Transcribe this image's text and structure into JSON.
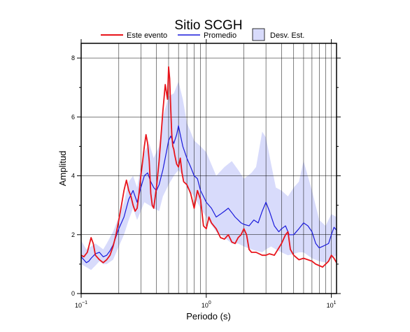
{
  "chart_data": {
    "type": "line",
    "title": "Sitio SCGH",
    "xlabel": "Periodo (s)",
    "ylabel": "Amplitud",
    "xscale": "log",
    "xlim": [
      0.1,
      11
    ],
    "ylim": [
      0,
      8.5
    ],
    "xticks": [
      {
        "value": 0.1,
        "base": "10",
        "exp": "−1"
      },
      {
        "value": 1,
        "base": "10",
        "exp": "0"
      },
      {
        "value": 10,
        "base": "10",
        "exp": "1"
      }
    ],
    "yticks": [
      0,
      2,
      4,
      6,
      8
    ],
    "grid": true,
    "legend_position": "top",
    "legend": [
      {
        "label": "Este evento",
        "type": "line",
        "color": "#e8141b"
      },
      {
        "label": "Promedio",
        "type": "line",
        "color": "#1a1adb"
      },
      {
        "label": "Desv. Est.",
        "type": "band",
        "color": "#d8dbfb"
      }
    ],
    "series": [
      {
        "name": "Este evento",
        "color": "#e8141b",
        "x": [
          0.1,
          0.105,
          0.112,
          0.12,
          0.125,
          0.13,
          0.14,
          0.15,
          0.16,
          0.17,
          0.18,
          0.19,
          0.2,
          0.21,
          0.22,
          0.23,
          0.24,
          0.25,
          0.26,
          0.27,
          0.28,
          0.29,
          0.3,
          0.31,
          0.32,
          0.33,
          0.34,
          0.35,
          0.36,
          0.37,
          0.38,
          0.4,
          0.42,
          0.45,
          0.47,
          0.49,
          0.5,
          0.51,
          0.52,
          0.53,
          0.54,
          0.55,
          0.56,
          0.58,
          0.6,
          0.62,
          0.64,
          0.66,
          0.7,
          0.75,
          0.8,
          0.85,
          0.9,
          0.95,
          1.0,
          1.05,
          1.1,
          1.2,
          1.3,
          1.4,
          1.5,
          1.6,
          1.7,
          1.8,
          1.9,
          2.0,
          2.1,
          2.2,
          2.3,
          2.5,
          2.8,
          3.0,
          3.2,
          3.5,
          4.0,
          4.3,
          4.5,
          4.7,
          5.0,
          5.5,
          6.0,
          6.5,
          7.0,
          7.5,
          8.0,
          8.5,
          9.0,
          9.5,
          10.0,
          10.5,
          11.0
        ],
        "values": [
          1.3,
          1.25,
          1.4,
          1.9,
          1.7,
          1.3,
          1.15,
          1.05,
          1.15,
          1.3,
          1.6,
          2.0,
          2.5,
          3.0,
          3.5,
          3.85,
          3.5,
          3.3,
          3.0,
          2.8,
          2.9,
          3.4,
          4.0,
          4.5,
          5.0,
          5.4,
          5.1,
          4.5,
          3.4,
          3.0,
          2.9,
          3.6,
          4.5,
          6.2,
          7.1,
          6.6,
          7.7,
          7.3,
          6.3,
          5.4,
          5.0,
          4.9,
          4.7,
          4.4,
          4.3,
          4.6,
          4.1,
          3.8,
          3.7,
          3.4,
          2.9,
          3.5,
          3.2,
          2.3,
          2.2,
          2.6,
          2.4,
          2.2,
          1.9,
          1.85,
          2.0,
          1.75,
          1.7,
          1.9,
          2.0,
          2.2,
          2.0,
          1.5,
          1.4,
          1.4,
          1.3,
          1.3,
          1.35,
          1.3,
          1.7,
          2.0,
          2.1,
          1.5,
          1.3,
          1.15,
          1.2,
          1.15,
          1.1,
          1.0,
          0.95,
          0.9,
          1.0,
          1.1,
          1.3,
          1.2,
          1.05
        ]
      },
      {
        "name": "Promedio",
        "color": "#1a1adb",
        "x": [
          0.1,
          0.105,
          0.11,
          0.115,
          0.12,
          0.13,
          0.14,
          0.15,
          0.16,
          0.17,
          0.18,
          0.2,
          0.22,
          0.24,
          0.26,
          0.28,
          0.3,
          0.32,
          0.34,
          0.36,
          0.38,
          0.4,
          0.42,
          0.45,
          0.48,
          0.5,
          0.52,
          0.55,
          0.58,
          0.6,
          0.62,
          0.65,
          0.7,
          0.75,
          0.8,
          0.85,
          0.9,
          0.95,
          1.0,
          1.1,
          1.2,
          1.3,
          1.4,
          1.5,
          1.6,
          1.7,
          1.8,
          1.9,
          2.0,
          2.2,
          2.4,
          2.6,
          2.8,
          3.0,
          3.2,
          3.5,
          3.8,
          4.0,
          4.3,
          4.6,
          5.0,
          5.5,
          6.0,
          6.5,
          7.0,
          7.5,
          8.0,
          8.5,
          9.0,
          9.5,
          10.0,
          10.5,
          11.0
        ],
        "values": [
          1.25,
          1.15,
          1.05,
          1.1,
          1.2,
          1.35,
          1.4,
          1.25,
          1.3,
          1.45,
          1.65,
          2.2,
          2.6,
          3.2,
          3.5,
          3.1,
          3.6,
          4.0,
          4.1,
          3.8,
          3.6,
          3.5,
          3.7,
          4.2,
          4.8,
          5.2,
          5.35,
          5.1,
          5.4,
          5.7,
          5.4,
          5.0,
          4.6,
          4.3,
          4.0,
          3.9,
          3.5,
          3.3,
          3.1,
          2.9,
          2.6,
          2.7,
          2.8,
          2.9,
          2.75,
          2.6,
          2.5,
          2.4,
          2.35,
          2.3,
          2.5,
          2.4,
          2.8,
          3.1,
          2.8,
          2.3,
          2.1,
          2.2,
          2.3,
          2.0,
          2.0,
          2.2,
          2.4,
          2.3,
          2.1,
          1.7,
          1.55,
          1.6,
          1.65,
          1.7,
          2.0,
          2.25,
          2.15
        ]
      }
    ],
    "band": {
      "name": "Desv. Est.",
      "color": "#d8dbfb",
      "x": [
        0.1,
        0.11,
        0.12,
        0.13,
        0.14,
        0.15,
        0.16,
        0.18,
        0.2,
        0.22,
        0.24,
        0.26,
        0.28,
        0.3,
        0.32,
        0.35,
        0.38,
        0.42,
        0.45,
        0.5,
        0.55,
        0.6,
        0.65,
        0.7,
        0.8,
        0.9,
        1.0,
        1.2,
        1.4,
        1.6,
        1.8,
        2.0,
        2.3,
        2.5,
        2.8,
        3.0,
        3.3,
        3.6,
        4.0,
        4.5,
        5.0,
        5.5,
        6.0,
        7.0,
        8.0,
        9.0,
        10.0,
        11.0
      ],
      "upper": [
        1.8,
        1.5,
        1.6,
        1.7,
        1.6,
        1.5,
        1.7,
        2.1,
        2.6,
        3.1,
        3.8,
        4.0,
        3.6,
        4.3,
        4.8,
        5.1,
        4.6,
        5.0,
        6.0,
        6.7,
        6.8,
        7.2,
        6.6,
        5.8,
        5.2,
        5.0,
        4.8,
        4.0,
        4.3,
        4.5,
        4.2,
        3.9,
        4.1,
        4.3,
        5.5,
        5.3,
        4.4,
        3.6,
        3.5,
        3.3,
        3.6,
        3.8,
        4.5,
        3.5,
        2.5,
        2.3,
        2.7,
        2.6
      ],
      "lower": [
        1.0,
        0.9,
        0.8,
        0.95,
        1.1,
        1.0,
        1.0,
        1.15,
        1.6,
        2.0,
        2.5,
        2.9,
        2.5,
        2.8,
        3.1,
        3.0,
        2.9,
        2.8,
        3.3,
        3.7,
        4.0,
        4.2,
        4.0,
        3.6,
        3.3,
        2.9,
        2.6,
        2.1,
        1.9,
        1.7,
        1.7,
        1.6,
        1.5,
        1.45,
        1.4,
        1.5,
        1.6,
        1.5,
        1.4,
        1.3,
        1.35,
        1.4,
        1.4,
        1.2,
        1.1,
        1.05,
        1.2,
        1.3
      ]
    }
  }
}
